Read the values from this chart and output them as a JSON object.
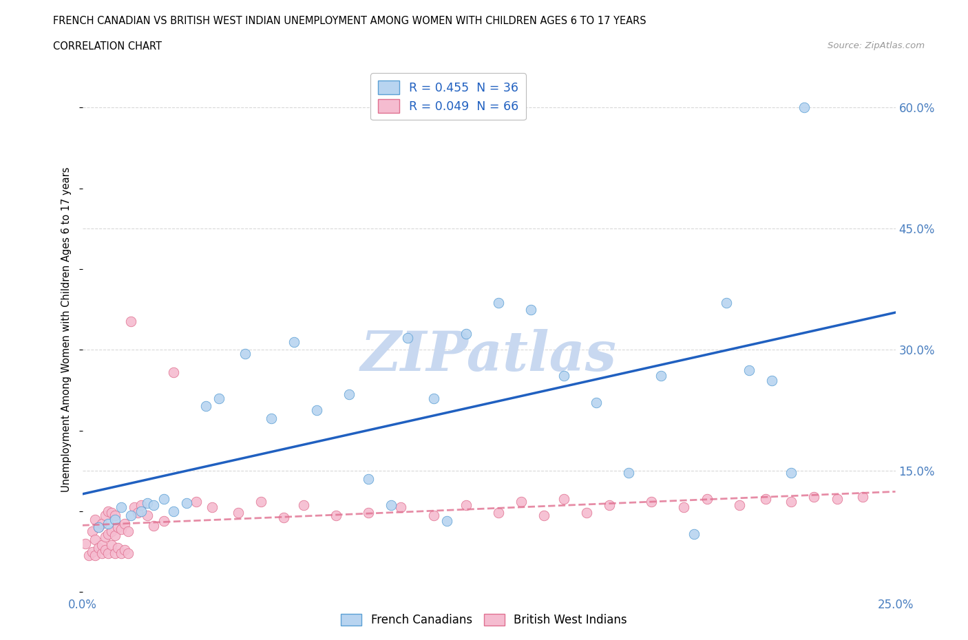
{
  "title": "FRENCH CANADIAN VS BRITISH WEST INDIAN UNEMPLOYMENT AMONG WOMEN WITH CHILDREN AGES 6 TO 17 YEARS",
  "subtitle": "CORRELATION CHART",
  "source": "Source: ZipAtlas.com",
  "ylabel": "Unemployment Among Women with Children Ages 6 to 17 years",
  "xlim": [
    0.0,
    0.25
  ],
  "ylim": [
    0.0,
    0.65
  ],
  "ytick_positions": [
    0.15,
    0.3,
    0.45,
    0.6
  ],
  "ytick_labels": [
    "15.0%",
    "30.0%",
    "45.0%",
    "60.0%"
  ],
  "fc_color": "#b8d4f0",
  "fc_edge": "#5a9fd4",
  "bwi_color": "#f5bcd0",
  "bwi_edge": "#e07090",
  "fc_line_color": "#2060c0",
  "bwi_line_color": "#e07090",
  "watermark_text": "ZIPatlas",
  "watermark_color": "#c8d8f0",
  "background_color": "#ffffff",
  "grid_color": "#d8d8d8",
  "legend_fc_label": "R = 0.455  N = 36",
  "legend_bwi_label": "R = 0.049  N = 66",
  "bottom_legend_fc": "French Canadians",
  "bottom_legend_bwi": "British West Indians",
  "fc_x": [
    0.005,
    0.008,
    0.01,
    0.012,
    0.015,
    0.018,
    0.02,
    0.022,
    0.025,
    0.028,
    0.032,
    0.038,
    0.042,
    0.05,
    0.058,
    0.065,
    0.072,
    0.082,
    0.088,
    0.095,
    0.1,
    0.108,
    0.112,
    0.118,
    0.128,
    0.138,
    0.148,
    0.158,
    0.168,
    0.178,
    0.188,
    0.198,
    0.205,
    0.212,
    0.218,
    0.222
  ],
  "fc_y": [
    0.08,
    0.085,
    0.09,
    0.105,
    0.095,
    0.1,
    0.11,
    0.108,
    0.115,
    0.1,
    0.11,
    0.23,
    0.24,
    0.295,
    0.215,
    0.31,
    0.225,
    0.245,
    0.14,
    0.108,
    0.315,
    0.24,
    0.088,
    0.32,
    0.358,
    0.35,
    0.268,
    0.235,
    0.148,
    0.268,
    0.072,
    0.358,
    0.275,
    0.262,
    0.148,
    0.6
  ],
  "bwi_x": [
    0.001,
    0.002,
    0.003,
    0.003,
    0.004,
    0.004,
    0.004,
    0.005,
    0.005,
    0.006,
    0.006,
    0.006,
    0.007,
    0.007,
    0.007,
    0.008,
    0.008,
    0.008,
    0.009,
    0.009,
    0.009,
    0.01,
    0.01,
    0.01,
    0.011,
    0.011,
    0.012,
    0.012,
    0.013,
    0.013,
    0.014,
    0.014,
    0.015,
    0.016,
    0.017,
    0.018,
    0.02,
    0.022,
    0.025,
    0.028,
    0.035,
    0.04,
    0.048,
    0.055,
    0.062,
    0.068,
    0.078,
    0.088,
    0.098,
    0.108,
    0.118,
    0.128,
    0.135,
    0.142,
    0.148,
    0.155,
    0.162,
    0.175,
    0.185,
    0.192,
    0.202,
    0.21,
    0.218,
    0.225,
    0.232,
    0.24
  ],
  "bwi_y": [
    0.06,
    0.045,
    0.05,
    0.075,
    0.045,
    0.065,
    0.09,
    0.055,
    0.08,
    0.048,
    0.058,
    0.085,
    0.052,
    0.068,
    0.095,
    0.048,
    0.072,
    0.1,
    0.058,
    0.075,
    0.098,
    0.048,
    0.07,
    0.095,
    0.055,
    0.08,
    0.048,
    0.078,
    0.052,
    0.085,
    0.048,
    0.075,
    0.335,
    0.105,
    0.098,
    0.108,
    0.095,
    0.082,
    0.088,
    0.272,
    0.112,
    0.105,
    0.098,
    0.112,
    0.092,
    0.108,
    0.095,
    0.098,
    0.105,
    0.095,
    0.108,
    0.098,
    0.112,
    0.095,
    0.115,
    0.098,
    0.108,
    0.112,
    0.105,
    0.115,
    0.108,
    0.115,
    0.112,
    0.118,
    0.115,
    0.118
  ]
}
